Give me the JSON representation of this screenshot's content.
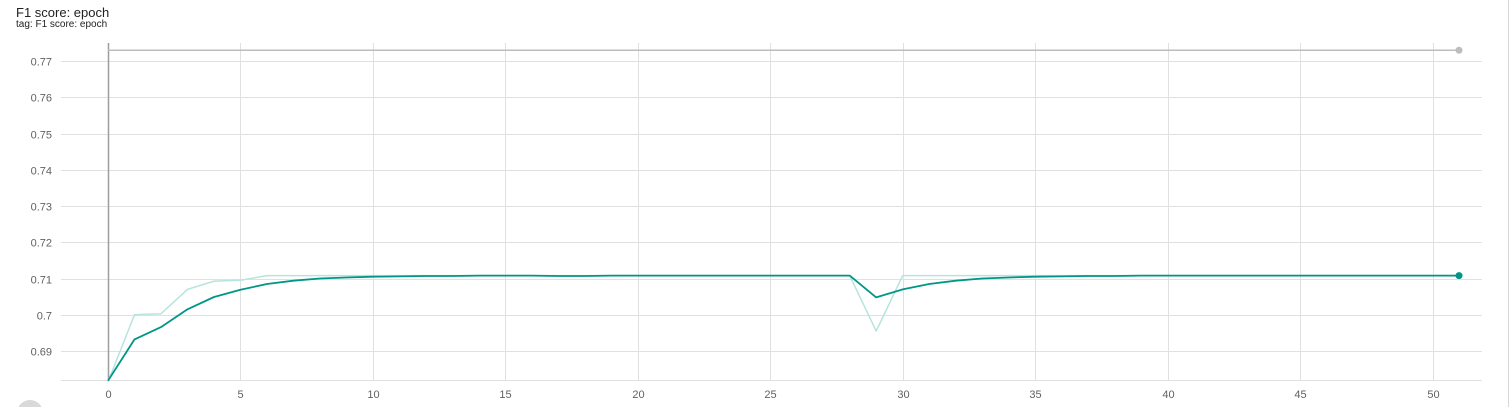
{
  "card": {
    "title": "F1 score: epoch",
    "tag": "tag: F1 score: epoch"
  },
  "colors": {
    "raw": "#b7e4dc",
    "smoothed": "#009687",
    "reference": "#bdbdbd",
    "grid": "#e0e0e0",
    "axis": "#9e9e9e"
  },
  "chart_data": {
    "type": "line",
    "title": "F1 score: epoch",
    "xlabel": "",
    "ylabel": "",
    "xlim": [
      0,
      51
    ],
    "ylim": [
      0.682,
      0.775
    ],
    "xticks": [
      0,
      5,
      10,
      15,
      20,
      25,
      30,
      35,
      40,
      45,
      50
    ],
    "xtick_labels": [
      "0",
      "5",
      "10",
      "15",
      "20",
      "25",
      "30",
      "35",
      "40",
      "45",
      "50"
    ],
    "yticks": [
      0.69,
      0.7,
      0.71,
      0.72,
      0.73,
      0.74,
      0.75,
      0.76,
      0.77
    ],
    "ytick_labels": [
      "0.69",
      "0.7",
      "0.71",
      "0.72",
      "0.73",
      "0.74",
      "0.75",
      "0.76",
      "0.77"
    ],
    "grid": true,
    "legend": "none",
    "series": [
      {
        "role": "reference",
        "x": [
          0,
          51
        ],
        "values": [
          0.773,
          0.773
        ]
      },
      {
        "role": "raw",
        "x": [
          0,
          1,
          2,
          3,
          4,
          5,
          6,
          7,
          8,
          9,
          10,
          11,
          12,
          13,
          14,
          15,
          16,
          17,
          18,
          19,
          20,
          21,
          22,
          23,
          24,
          25,
          26,
          27,
          28,
          29,
          30,
          31,
          32,
          33,
          34,
          35,
          36,
          37,
          38,
          39,
          40,
          41,
          42,
          43,
          44,
          45,
          46,
          47,
          48,
          49,
          50,
          51
        ],
        "values": [
          0.6815,
          0.7,
          0.7003,
          0.707,
          0.7093,
          0.7095,
          0.7108,
          0.7108,
          0.7108,
          0.7108,
          0.7108,
          0.7108,
          0.7108,
          0.7108,
          0.7108,
          0.7108,
          0.7108,
          0.7108,
          0.7108,
          0.7108,
          0.7108,
          0.7108,
          0.7108,
          0.7108,
          0.7108,
          0.7108,
          0.7108,
          0.7108,
          0.7108,
          0.6955,
          0.7108,
          0.7108,
          0.7108,
          0.7108,
          0.7108,
          0.7108,
          0.7108,
          0.7108,
          0.7108,
          0.7108,
          0.7108,
          0.7108,
          0.7108,
          0.7108,
          0.7108,
          0.7108,
          0.7108,
          0.7108,
          0.7108,
          0.7108,
          0.7108,
          0.7108
        ]
      },
      {
        "role": "smoothed",
        "x": [
          0,
          1,
          2,
          3,
          4,
          5,
          6,
          7,
          8,
          9,
          10,
          11,
          12,
          13,
          14,
          15,
          16,
          17,
          18,
          19,
          20,
          21,
          22,
          23,
          24,
          25,
          26,
          27,
          28,
          29,
          30,
          31,
          32,
          33,
          34,
          35,
          36,
          37,
          38,
          39,
          40,
          41,
          42,
          43,
          44,
          45,
          46,
          47,
          48,
          49,
          50,
          51
        ],
        "values": [
          0.6818,
          0.6932,
          0.6966,
          0.7015,
          0.7049,
          0.7069,
          0.7085,
          0.7094,
          0.71,
          0.7103,
          0.7105,
          0.7106,
          0.7107,
          0.7107,
          0.7108,
          0.7108,
          0.7108,
          0.7107,
          0.7107,
          0.7108,
          0.7108,
          0.7108,
          0.7108,
          0.7108,
          0.7108,
          0.7108,
          0.7108,
          0.7108,
          0.7108,
          0.7048,
          0.707,
          0.7085,
          0.7094,
          0.71,
          0.7103,
          0.7105,
          0.7106,
          0.7107,
          0.7107,
          0.7108,
          0.7108,
          0.7108,
          0.7108,
          0.7108,
          0.7108,
          0.7108,
          0.7108,
          0.7108,
          0.7108,
          0.7108,
          0.7108,
          0.7108
        ]
      }
    ]
  }
}
